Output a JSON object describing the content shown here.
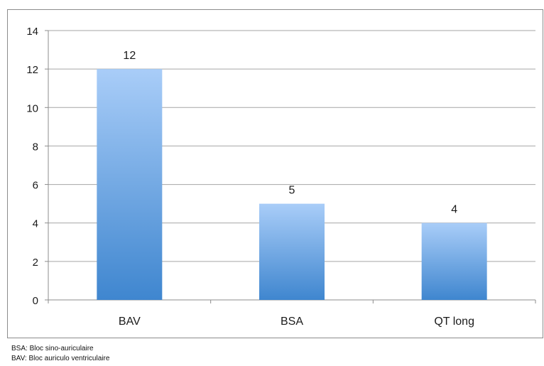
{
  "chart_data": {
    "type": "bar",
    "categories": [
      "BAV",
      "BSA",
      "QT long"
    ],
    "values": [
      12,
      5,
      4
    ],
    "data_labels": [
      "12",
      "5",
      "4"
    ],
    "y_ticks": [
      "0",
      "2",
      "4",
      "6",
      "8",
      "10",
      "12",
      "14"
    ],
    "ylim": [
      0,
      14
    ],
    "grid": true,
    "legend": "none"
  },
  "colors": {
    "bar_top": "#a9cdf8",
    "bar_bottom": "#3f86cf",
    "gridline": "#a6a6a6",
    "axis": "#8c8c8c",
    "text": "#1a1a1a"
  },
  "notes": [
    "BSA: Bloc sino-auriculaire",
    "BAV: Bloc auriculo ventriculaire"
  ]
}
